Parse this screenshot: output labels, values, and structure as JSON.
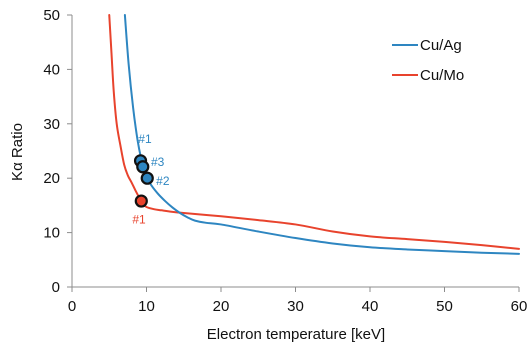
{
  "chart_data": {
    "type": "line",
    "title": "",
    "xlabel": "Electron temperature [keV]",
    "ylabel": "Kα Ratio",
    "xlim": [
      0,
      60
    ],
    "ylim": [
      0,
      50
    ],
    "xticks": [
      0,
      10,
      20,
      30,
      40,
      50,
      60
    ],
    "yticks": [
      0,
      10,
      20,
      30,
      40,
      50
    ],
    "grid": false,
    "legend_position": "top-right",
    "series": [
      {
        "name": "Cu/Ag",
        "color": "#2e86c1",
        "x": [
          7.1,
          7.6,
          8.2,
          8.8,
          9.3,
          9.8,
          10.5,
          11.5,
          12.5,
          13.5,
          14.5,
          15.5,
          16.5,
          18,
          20,
          25,
          30,
          35,
          40,
          45,
          50,
          55,
          60
        ],
        "y": [
          50,
          41,
          33,
          27,
          23.5,
          21,
          19,
          17.2,
          15.8,
          14.6,
          13.6,
          12.8,
          12.2,
          11.8,
          11.5,
          10.2,
          9.0,
          8.0,
          7.3,
          6.9,
          6.6,
          6.3,
          6.1
        ]
      },
      {
        "name": "Cu/Mo",
        "color": "#e8432d",
        "x": [
          5.0,
          5.3,
          5.6,
          6.0,
          6.5,
          7.0,
          7.5,
          8.0,
          8.5,
          9.0,
          9.5,
          10.0,
          11,
          12,
          13,
          15,
          20,
          25,
          30,
          35,
          40,
          45,
          50,
          55,
          60
        ],
        "y": [
          50,
          43,
          36,
          30,
          26,
          22.5,
          20.5,
          19.2,
          17.8,
          16.5,
          15.3,
          14.7,
          14.3,
          14.1,
          13.9,
          13.6,
          13.0,
          12.3,
          11.5,
          10.2,
          9.3,
          8.8,
          8.3,
          7.7,
          7.0
        ]
      }
    ],
    "markers": [
      {
        "x": 9.2,
        "y": 23.2,
        "fill": "#2e86c1"
      },
      {
        "x": 9.5,
        "y": 22.1,
        "fill": "#2e86c1"
      },
      {
        "x": 10.1,
        "y": 20.0,
        "fill": "#2e86c1"
      },
      {
        "x": 9.3,
        "y": 15.8,
        "fill": "#e8432d"
      }
    ],
    "annotations": [
      {
        "text": "#1",
        "x": 8.9,
        "y": 27.2,
        "color": "#2e86c1"
      },
      {
        "text": "#3",
        "x": 10.6,
        "y": 23.0,
        "color": "#2e86c1"
      },
      {
        "text": "#2",
        "x": 11.3,
        "y": 19.5,
        "color": "#2e86c1"
      },
      {
        "text": "#1",
        "x": 8.1,
        "y": 12.4,
        "color": "#e8432d"
      }
    ]
  }
}
